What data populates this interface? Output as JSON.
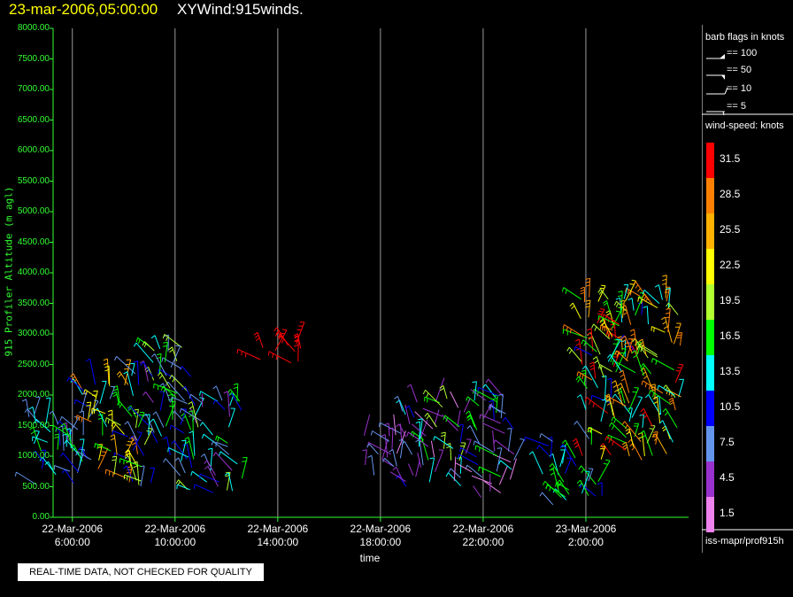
{
  "header": {
    "datetime": "23-mar-2006,05:00:00",
    "product": "XYWind:915winds."
  },
  "notice": "REAL-TIME DATA, NOT CHECKED FOR QUALITY",
  "legend": {
    "barb_title": "barb flags in knots",
    "barb_items": [
      "== 100",
      "== 50",
      "== 10",
      "== 5"
    ],
    "speed_title": "wind-speed: knots",
    "scale": [
      {
        "label": "31.5",
        "color": "#ff0000"
      },
      {
        "label": "28.5",
        "color": "#ff8000"
      },
      {
        "label": "25.5",
        "color": "#ffb000"
      },
      {
        "label": "22.5",
        "color": "#ffff00"
      },
      {
        "label": "19.5",
        "color": "#b0ff30"
      },
      {
        "label": "16.5",
        "color": "#00ff00"
      },
      {
        "label": "13.5",
        "color": "#00ffff"
      },
      {
        "label": "10.5",
        "color": "#0000ff"
      },
      {
        "label": "7.5",
        "color": "#6495ed"
      },
      {
        "label": "4.5",
        "color": "#9932cc"
      },
      {
        "label": "1.5",
        "color": "#ee82ee"
      }
    ],
    "source": "iss-mapr/prof915h"
  },
  "chart_data": {
    "type": "scatter",
    "title": "23-mar-2006,05:00:00 XYWind:915winds.",
    "xlabel": "time",
    "ylabel": "915 Profiler Altitude (m agl)",
    "ylim": [
      0,
      8000
    ],
    "xlim": [
      "22-Mar-2006 05:15",
      "23-Mar-2006 06:00"
    ],
    "yticks": [
      "0.00",
      "500.00",
      "1000.00",
      "1500.00",
      "2000.00",
      "2500.00",
      "3000.00",
      "3500.00",
      "4000.00",
      "4500.00",
      "5000.00",
      "5500.00",
      "6000.00",
      "6500.00",
      "7000.00",
      "7500.00",
      "8000.00"
    ],
    "xticks": [
      {
        "date": "22-Mar-2006",
        "time": "6:00:00"
      },
      {
        "date": "22-Mar-2006",
        "time": "10:00:00"
      },
      {
        "date": "22-Mar-2006",
        "time": "14:00:00"
      },
      {
        "date": "22-Mar-2006",
        "time": "18:00:00"
      },
      {
        "date": "22-Mar-2006",
        "time": "22:00:00"
      },
      {
        "date": "23-Mar-2006",
        "time": "2:00:00"
      }
    ],
    "grid": "vertical lines at x ticks",
    "series": [
      {
        "x": "22-Mar-2006 05:30",
        "y_range": [
          400,
          1800
        ],
        "speed_range": [
          5,
          16
        ]
      },
      {
        "x": "22-Mar-2006 07:30",
        "y_range": [
          500,
          2200
        ],
        "speed_range": [
          6,
          30
        ]
      },
      {
        "x": "22-Mar-2006 09:30",
        "y_range": [
          500,
          2800
        ],
        "speed_range": [
          5,
          20
        ]
      },
      {
        "x": "22-Mar-2006 11:30",
        "y_range": [
          400,
          2000
        ],
        "speed_range": [
          4,
          20
        ]
      },
      {
        "x": "22-Mar-2006 14:30",
        "y_range": [
          2500,
          2850
        ],
        "speed_range": [
          30,
          33
        ]
      },
      {
        "x": "22-Mar-2006 18:30",
        "y_range": [
          500,
          1400
        ],
        "speed_range": [
          2,
          8
        ]
      },
      {
        "x": "22-Mar-2006 20:00",
        "y_range": [
          500,
          2000
        ],
        "speed_range": [
          2,
          20
        ]
      },
      {
        "x": "22-Mar-2006 22:00",
        "y_range": [
          300,
          2000
        ],
        "speed_range": [
          2,
          18
        ]
      },
      {
        "x": "23-Mar-2006 01:30",
        "y_range": [
          200,
          1300
        ],
        "speed_range": [
          8,
          18
        ]
      },
      {
        "x": "23-Mar-2006 03:00",
        "y_range": [
          900,
          3700
        ],
        "speed_range": [
          10,
          33
        ]
      },
      {
        "x": "23-Mar-2006 04:30",
        "y_range": [
          1000,
          3600
        ],
        "speed_range": [
          12,
          32
        ]
      }
    ]
  }
}
